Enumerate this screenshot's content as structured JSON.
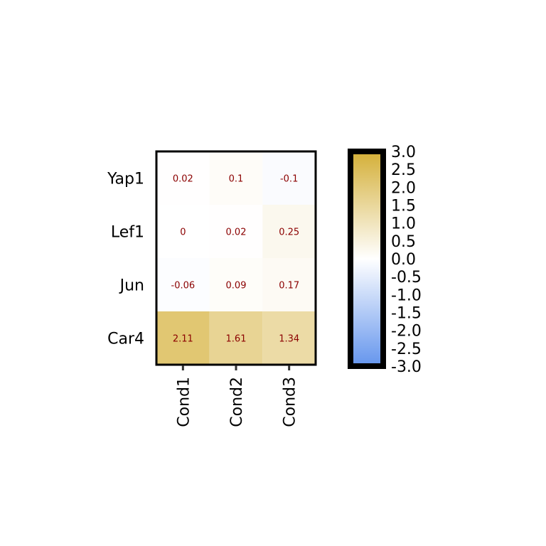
{
  "chart_data": {
    "type": "heatmap",
    "rows": [
      "Yap1",
      "Lef1",
      "Jun",
      "Car4"
    ],
    "columns": [
      "Cond1",
      "Cond2",
      "Cond3"
    ],
    "values": [
      [
        0.02,
        0.1,
        -0.1
      ],
      [
        0,
        0.02,
        0.25
      ],
      [
        -0.06,
        0.09,
        0.17
      ],
      [
        2.11,
        1.61,
        1.34
      ]
    ],
    "value_labels": [
      [
        "0.02",
        "0.1",
        "-0.1"
      ],
      [
        "0",
        "0.02",
        "0.25"
      ],
      [
        "-0.06",
        "0.09",
        "0.17"
      ],
      [
        "2.11",
        "1.61",
        "1.34"
      ]
    ],
    "color_scale": {
      "min": -3.0,
      "max": 3.0,
      "low_color": "#6495ed",
      "mid_color": "#ffffff",
      "high_color": "#d4af37"
    },
    "colorbar_ticks": [
      "3.0",
      "2.5",
      "2.0",
      "1.5",
      "1.0",
      "0.5",
      "0.0",
      "-0.5",
      "-1.0",
      "-1.5",
      "-2.0",
      "-2.5",
      "-3.0"
    ],
    "value_text_color": "#8b0000",
    "legend_position": "right"
  }
}
